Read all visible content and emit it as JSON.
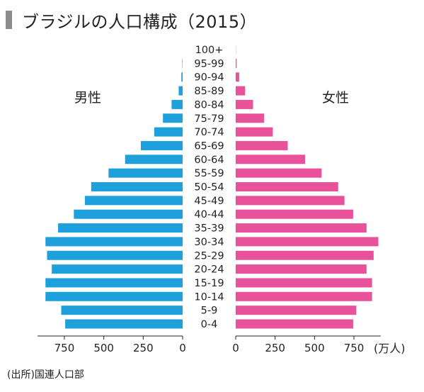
{
  "title": "ブラジルの人口構成（2015）",
  "source": "(出所)国連人口部",
  "chart_data": {
    "type": "bar",
    "subtype": "population-pyramid",
    "title": "ブラジルの人口構成（2015）",
    "unit_label": "(万人)",
    "categories": [
      "0-4",
      "5-9",
      "10-14",
      "15-19",
      "20-24",
      "25-29",
      "30-34",
      "35-39",
      "40-44",
      "45-49",
      "50-54",
      "55-59",
      "60-64",
      "65-69",
      "70-74",
      "75-79",
      "80-84",
      "85-89",
      "90-94",
      "95-99",
      "100+"
    ],
    "series": [
      {
        "name": "男性",
        "color": "#1ea0dc",
        "values": [
          745,
          770,
          870,
          870,
          830,
          860,
          870,
          790,
          690,
          620,
          580,
          470,
          365,
          265,
          180,
          125,
          70,
          25,
          8,
          2,
          0
        ]
      },
      {
        "name": "女性",
        "color": "#e9529a",
        "values": [
          745,
          765,
          865,
          865,
          830,
          875,
          905,
          830,
          745,
          690,
          650,
          545,
          440,
          330,
          235,
          180,
          110,
          60,
          22,
          6,
          1
        ]
      }
    ],
    "left_ticks": [
      "750",
      "500",
      "250",
      "0"
    ],
    "right_ticks": [
      "0",
      "250",
      "500",
      "750"
    ],
    "xlim": [
      0,
      920
    ],
    "grid": false,
    "legend": "labels-beside-bars"
  }
}
